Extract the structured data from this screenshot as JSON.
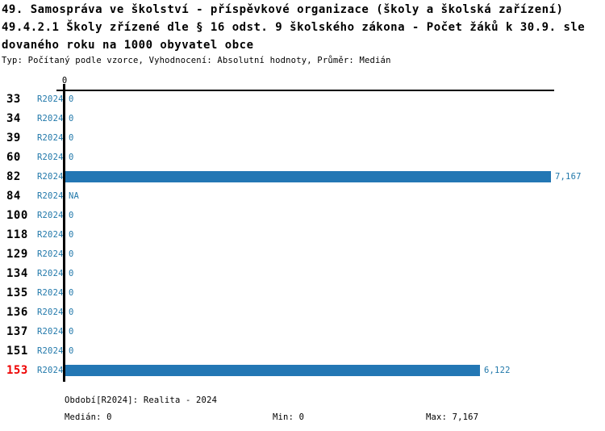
{
  "title": {
    "line1": "49. Samospráva ve školství - příspěvkové organizace (školy a školská zařízení)",
    "line2": "49.4.2.1 Školy zřízené dle § 16 odst. 9 školského zákona - Počet žáků k 30.9. sle",
    "line3": "dovaného roku na 1000 obyvatel obce",
    "subtitle": "Typ: Počítaný podle vzorce, Vyhodnocení: Absolutní hodnoty, Průměr: Medián"
  },
  "chart_data": {
    "type": "bar",
    "orientation": "horizontal",
    "categories": [
      "33",
      "34",
      "39",
      "60",
      "82",
      "84",
      "100",
      "118",
      "129",
      "134",
      "135",
      "136",
      "137",
      "151",
      "153"
    ],
    "series_label": "R2024",
    "values": [
      0,
      0,
      0,
      0,
      7167,
      null,
      0,
      0,
      0,
      0,
      0,
      0,
      0,
      0,
      6122
    ],
    "value_labels": [
      "0",
      "0",
      "0",
      "0",
      "7,167",
      "NA",
      "0",
      "0",
      "0",
      "0",
      "0",
      "0",
      "0",
      "0",
      "6,122"
    ],
    "highlighted_category": "153",
    "axis_top_tick": "0",
    "xlim": [
      0,
      7167
    ],
    "grid": false,
    "legend_position": "bottom"
  },
  "legend": {
    "period": "Období[R2024]: Realita - 2024",
    "median": "Medián: 0",
    "min": "Min: 0",
    "max": "Max: 7,167"
  },
  "colors": {
    "bar": "#2377b4",
    "blue_text": "#2178aa",
    "highlight_red": "#ee0000",
    "axis": "#000000"
  }
}
